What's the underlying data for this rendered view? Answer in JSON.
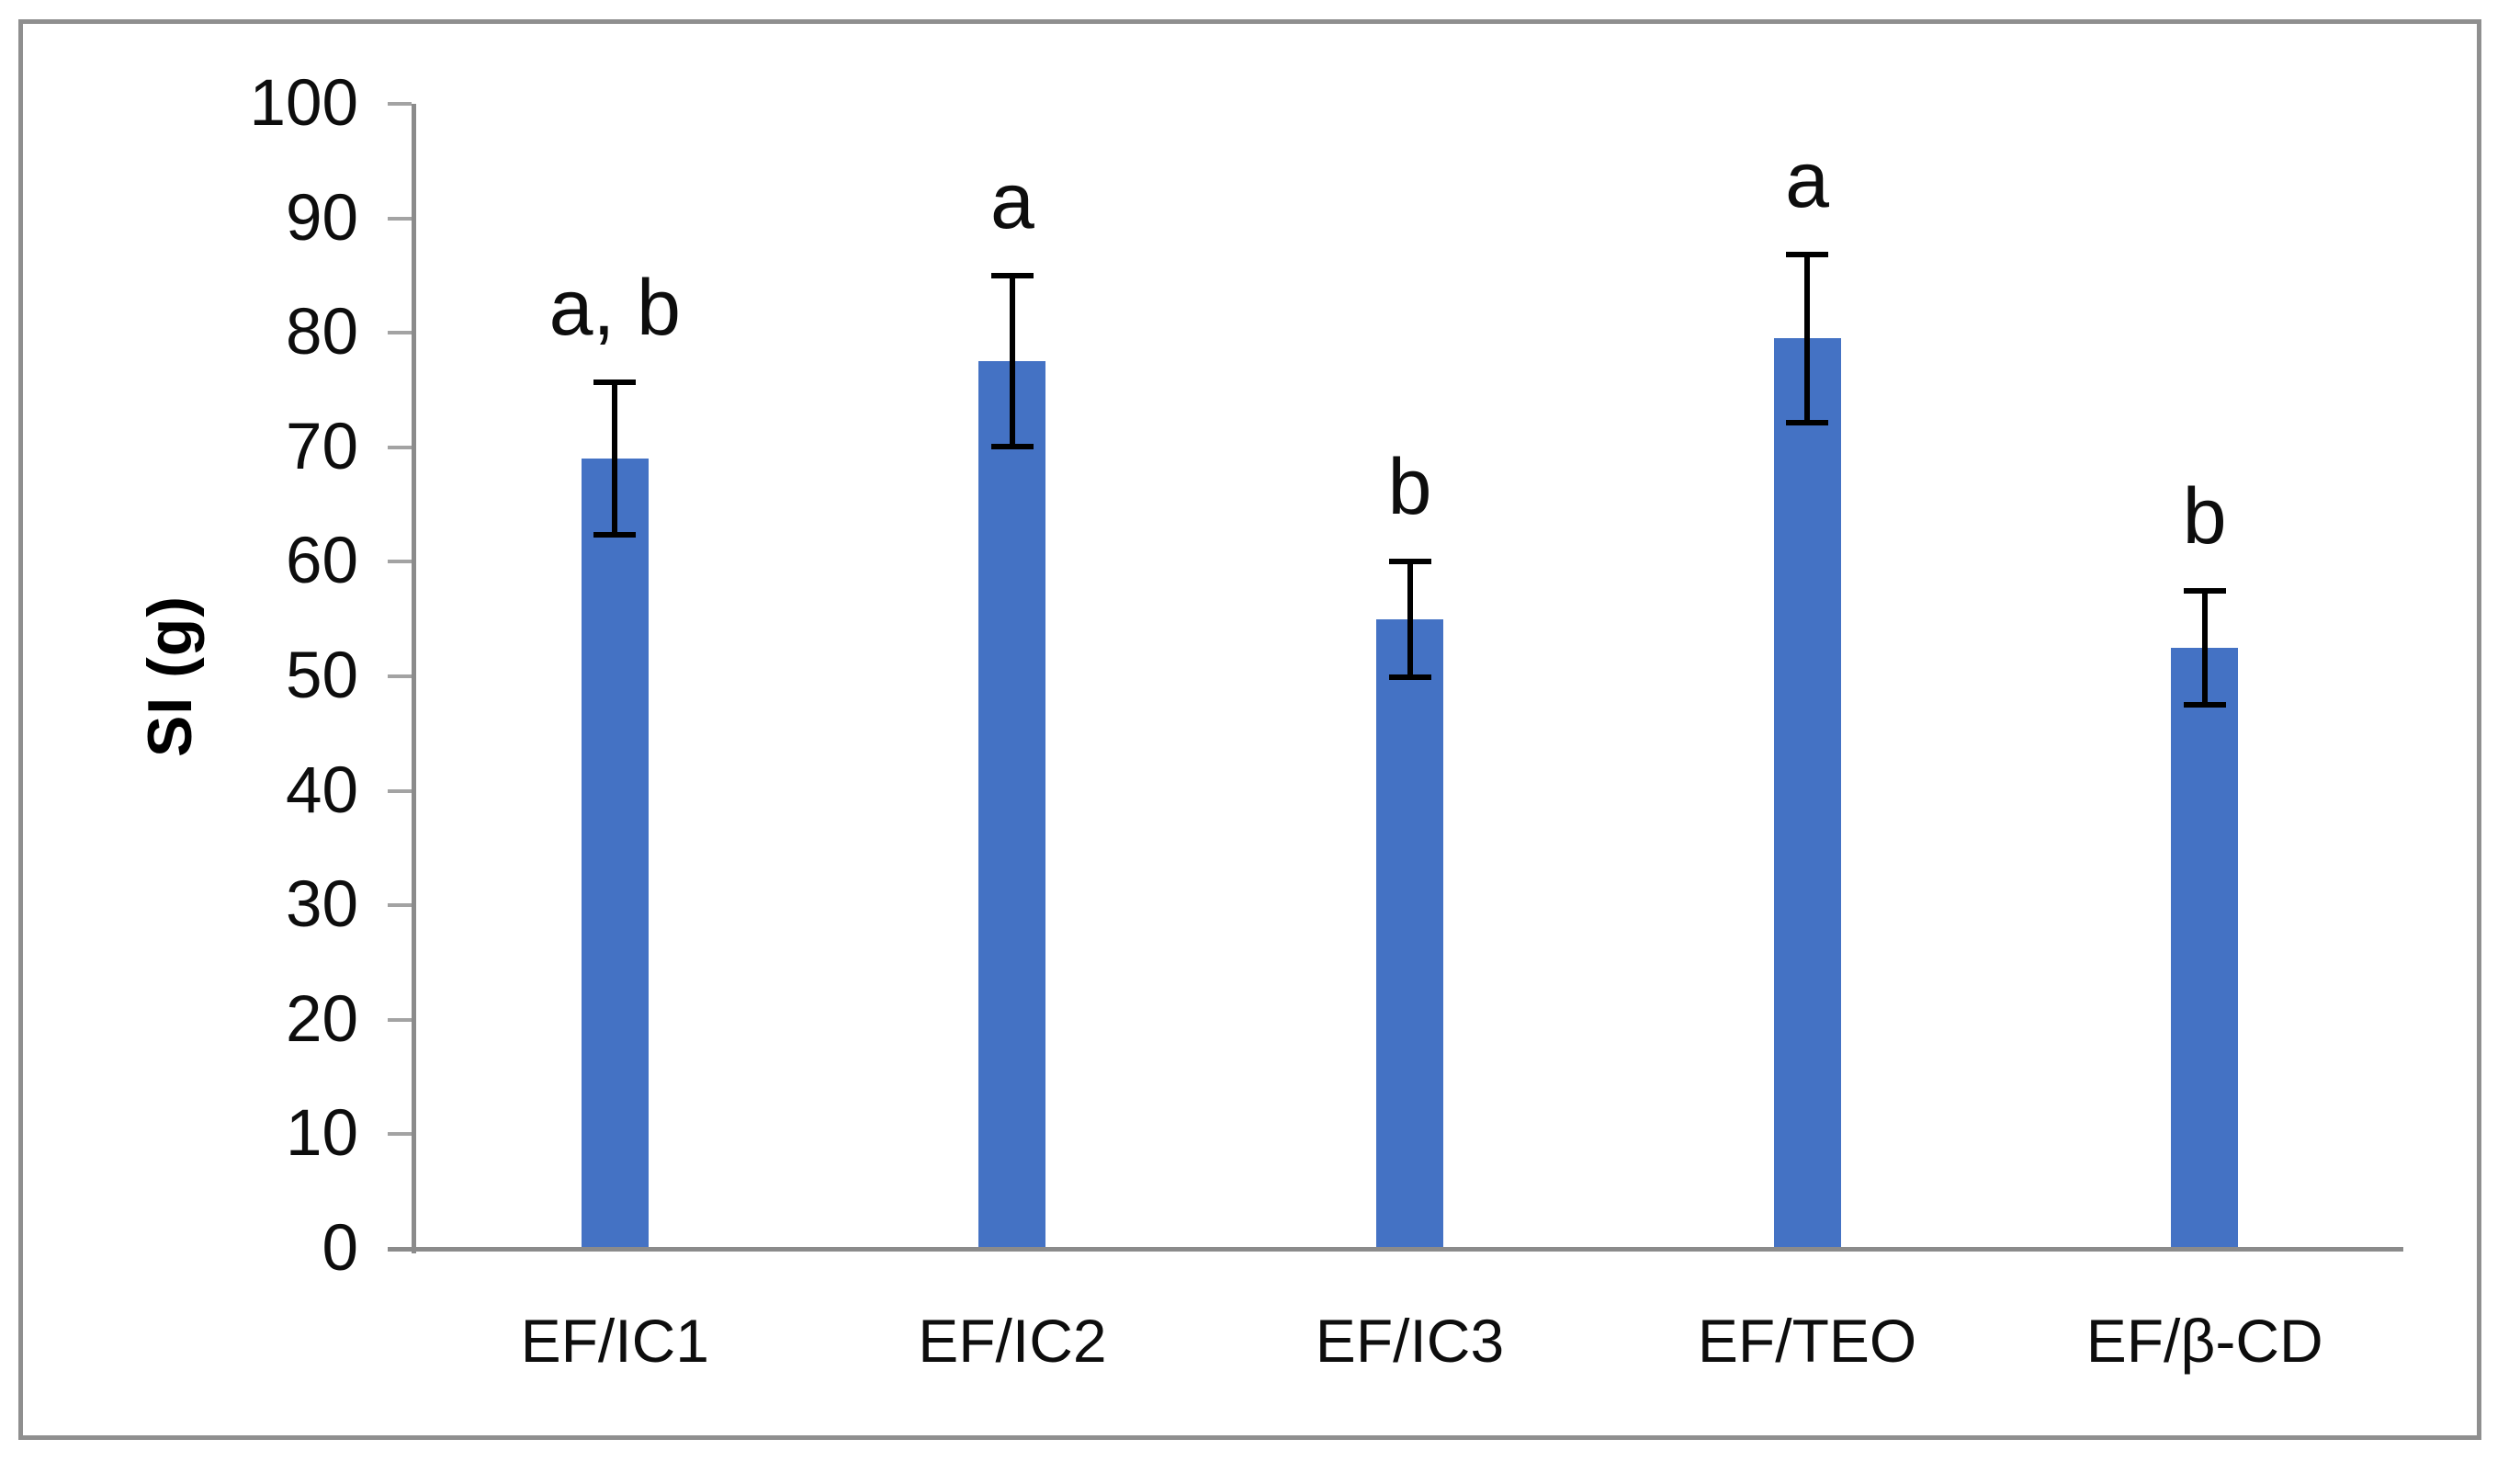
{
  "figure": {
    "background_color": "#FFFFFF",
    "border_color": "#8F8F8F"
  },
  "chart_data": {
    "type": "bar",
    "title": "",
    "xlabel": "",
    "ylabel": "SI (g)",
    "categories": [
      "EF/IC1",
      "EF/IC2",
      "EF/IC3",
      "EF/TEO",
      "EF/β-CD"
    ],
    "values": [
      69,
      77.5,
      55,
      79.5,
      52.5
    ],
    "error_bars": [
      6.9,
      7.7,
      5.3,
      7.6,
      5.2
    ],
    "annotations": [
      "a, b",
      "a",
      "b",
      "a",
      "b"
    ],
    "ylim": [
      0,
      100
    ],
    "ytick_step": 10,
    "ytick_labels": [
      "0",
      "10",
      "20",
      "30",
      "40",
      "50",
      "60",
      "70",
      "80",
      "90",
      "100"
    ],
    "bar_color": "#4472C4",
    "error_bar_color": "#000000",
    "axis_color": "#8B8B8B",
    "tick_color": "#A3A3A3",
    "text_color": "#0D0D0D",
    "grid": false,
    "legend": null
  }
}
